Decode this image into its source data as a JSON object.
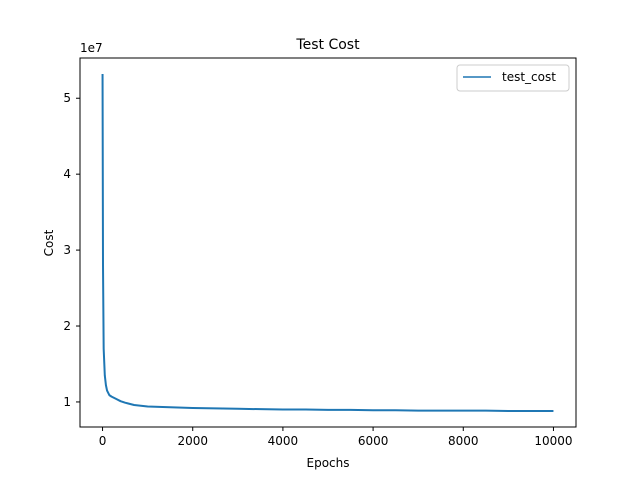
{
  "chart_data": {
    "type": "line",
    "title": "Test Cost",
    "xlabel": "Epochs",
    "ylabel": "Cost",
    "y_scale_label": "1e7",
    "xlim": [
      -500,
      10500
    ],
    "ylim": [
      6700000,
      55300000
    ],
    "xticks": [
      0,
      2000,
      4000,
      6000,
      8000,
      10000
    ],
    "yticks": [
      10000000,
      20000000,
      30000000,
      40000000,
      50000000
    ],
    "xtick_labels": [
      "0",
      "2000",
      "4000",
      "6000",
      "8000",
      "10000"
    ],
    "ytick_labels": [
      "1",
      "2",
      "3",
      "4",
      "5"
    ],
    "grid": false,
    "legend_position": "upper-right",
    "series": [
      {
        "name": "test_cost",
        "color": "#1f77b4",
        "x": [
          0,
          10,
          25,
          50,
          75,
          100,
          150,
          200,
          300,
          400,
          500,
          700,
          1000,
          1500,
          2000,
          2500,
          3000,
          3500,
          4000,
          4500,
          5000,
          5500,
          6000,
          6500,
          7000,
          7500,
          8000,
          8500,
          9000,
          9500,
          10000
        ],
        "y": [
          53200000,
          28000000,
          17000000,
          13500000,
          12200000,
          11500000,
          10900000,
          10700000,
          10400000,
          10100000,
          9900000,
          9600000,
          9400000,
          9300000,
          9200000,
          9150000,
          9100000,
          9050000,
          9000000,
          9000000,
          8950000,
          8950000,
          8900000,
          8900000,
          8850000,
          8850000,
          8850000,
          8850000,
          8800000,
          8800000,
          8800000
        ]
      }
    ]
  }
}
